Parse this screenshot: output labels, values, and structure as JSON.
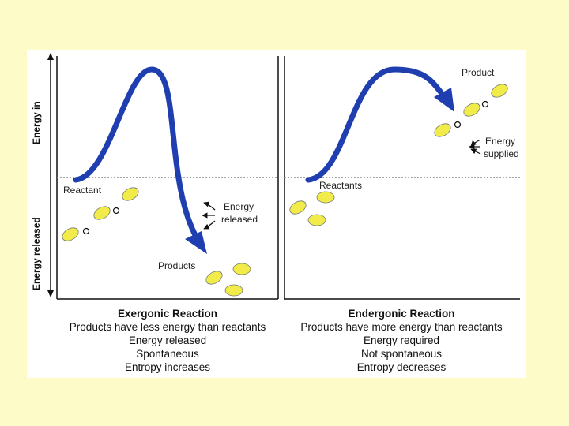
{
  "axis": {
    "energy_in": "Energy in",
    "energy_released": "Energy released"
  },
  "exergonic": {
    "reactant": "Reactant",
    "products": "Products",
    "energy_line1": "Energy",
    "energy_line2": "released",
    "caption_title": "Exergonic Reaction",
    "caption_lines": [
      "Products have less energy than reactants",
      "Energy released",
      "Spontaneous",
      "Entropy increases"
    ]
  },
  "endergonic": {
    "reactants": "Reactants",
    "product": "Product",
    "energy_line1": "Energy",
    "energy_line2": "supplied",
    "caption_title": "Endergonic Reaction",
    "caption_lines": [
      "Products have more energy than reactants",
      "Energy required",
      "Not spontaneous",
      "Entropy decreases"
    ]
  },
  "colors": {
    "arrow": "#1f3fb0",
    "molecule": "#f2ec4a",
    "background": "#fdfbc8"
  }
}
